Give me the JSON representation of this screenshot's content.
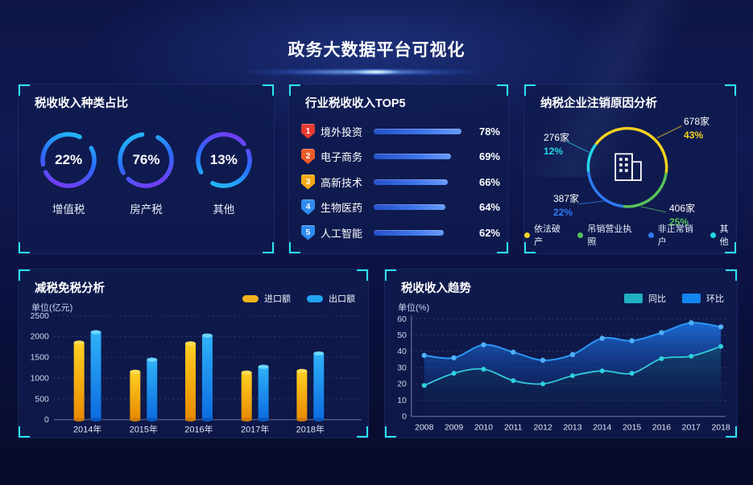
{
  "header": {
    "title": "政务大数据平台可视化"
  },
  "theme": {
    "accent_cyan": "#2ce5f2",
    "panel_bg": "#101c50",
    "page_bg": "#0b1140",
    "text": "#ffffff"
  },
  "chart_data": [
    {
      "id": "tax_type_share",
      "type": "pie",
      "title": "税收收入种类占比",
      "unit": "%",
      "items": [
        {
          "label": "增值税",
          "value": 22,
          "display": "22%"
        },
        {
          "label": "房产税",
          "value": 76,
          "display": "76%"
        },
        {
          "label": "其他",
          "value": 13,
          "display": "13%"
        }
      ],
      "ring_gradient": [
        "#8a2cf0",
        "#2b6cff",
        "#1fd0f5"
      ]
    },
    {
      "id": "industry_tax_top5",
      "type": "bar",
      "orientation": "horizontal",
      "title": "行业税收收入TOP5",
      "unit": "%",
      "rows": [
        {
          "rank": 1,
          "label": "境外投资",
          "value": 78,
          "badge_color": "#e53a30"
        },
        {
          "rank": 2,
          "label": "电子商务",
          "value": 69,
          "badge_color": "#ec5b28"
        },
        {
          "rank": 3,
          "label": "高新技术",
          "value": 66,
          "badge_color": "#f3ab17"
        },
        {
          "rank": 4,
          "label": "生物医药",
          "value": 64,
          "badge_color": "#2e8bf0"
        },
        {
          "rank": 5,
          "label": "人工智能",
          "value": 62,
          "badge_color": "#2e8bf0"
        }
      ],
      "bar_color": [
        "#2450c9",
        "#679cfa"
      ]
    },
    {
      "id": "cancellation_reasons",
      "type": "pie",
      "title": "纳税企业注销原因分析",
      "center_icon": "building-icon",
      "slices": [
        {
          "label": "依法破产",
          "count": "678家",
          "pct": "43%",
          "value": 43,
          "color": "#f5d31e"
        },
        {
          "label": "吊销营业执照",
          "count": "406家",
          "pct": "25%",
          "value": 25,
          "color": "#58c25a"
        },
        {
          "label": "非正常销户",
          "count": "387家",
          "pct": "22%",
          "value": 22,
          "color": "#2e7bf3"
        },
        {
          "label": "其他",
          "count": "276家",
          "pct": "12%",
          "value": 12,
          "color": "#23d6e8"
        }
      ],
      "legend_position": "bottom"
    },
    {
      "id": "tax_reduction",
      "type": "bar",
      "title": "减税免税分析",
      "ylabel": "单位(亿元)",
      "categories": [
        "2014年",
        "2015年",
        "2016年",
        "2017年",
        "2018年"
      ],
      "series": [
        {
          "name": "进口额",
          "color": "#f2b51c",
          "values": [
            1850,
            1150,
            1830,
            1130,
            1170
          ]
        },
        {
          "name": "出口额",
          "color": "#23a3f2",
          "values": [
            2100,
            1440,
            2020,
            1270,
            1590
          ]
        }
      ],
      "ylim": [
        0,
        2500
      ],
      "yticks": [
        0,
        500,
        1000,
        1500,
        2000,
        2500
      ],
      "grid": "dotted",
      "legend_position": "top-right"
    },
    {
      "id": "revenue_trend",
      "type": "area",
      "title": "税收收入趋势",
      "ylabel": "单位(%)",
      "x": [
        2008,
        2009,
        2010,
        2011,
        2012,
        2013,
        2014,
        2015,
        2016,
        2017,
        2018
      ],
      "series": [
        {
          "name": "同比",
          "color": "#1fb1c3",
          "values": [
            19,
            26.5,
            29,
            22,
            20,
            25,
            28,
            26.5,
            35.5,
            37,
            43
          ]
        },
        {
          "name": "环比",
          "color": "#1385f0",
          "values": [
            37.5,
            36,
            44,
            39.5,
            34.5,
            38,
            48,
            46.5,
            51.5,
            57.5,
            55
          ]
        }
      ],
      "ylim": [
        0,
        60
      ],
      "yticks": [
        0,
        10,
        20,
        30,
        40,
        50,
        60
      ],
      "grid": "dotted",
      "legend_position": "top-right"
    }
  ]
}
